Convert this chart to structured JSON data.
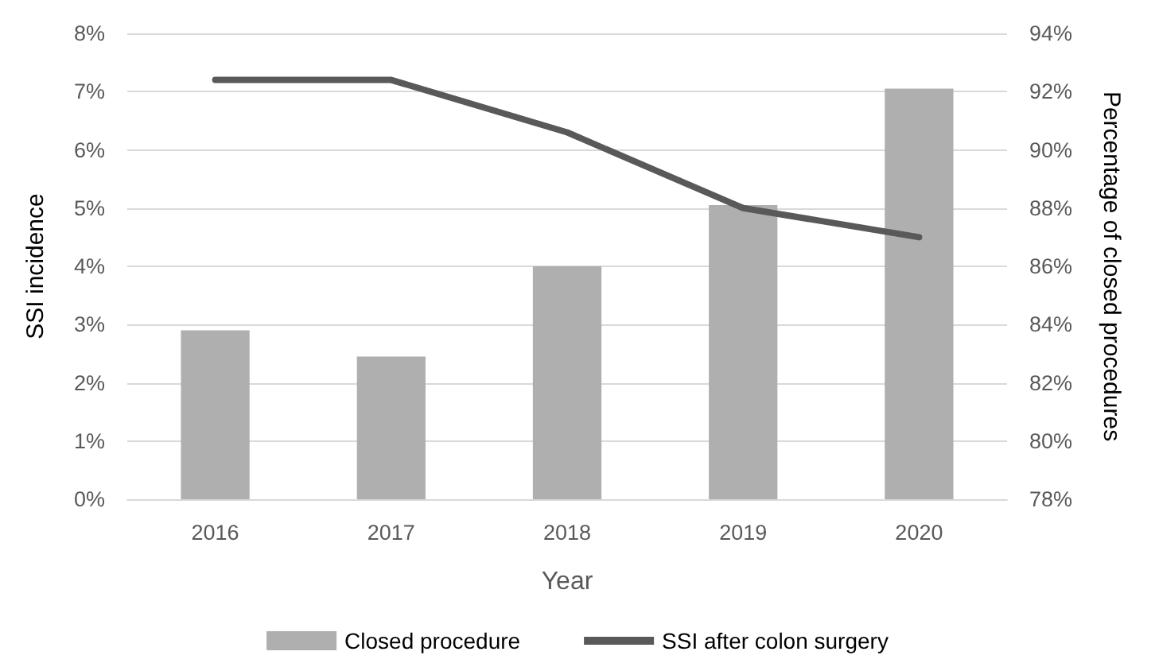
{
  "chart_data": {
    "type": "bar",
    "xlabel": "Year",
    "ylabel": "SSI incidence",
    "y2label": "Percentage of closed procedures",
    "categories": [
      "2016",
      "2017",
      "2018",
      "2019",
      "2020"
    ],
    "series": [
      {
        "name": "Closed procedure",
        "type": "bar",
        "axis": "y2",
        "color": "#afafaf",
        "values": [
          83.8,
          82.9,
          86.0,
          88.1,
          92.1
        ]
      },
      {
        "name": "SSI after colon surgery",
        "type": "line",
        "axis": "y",
        "color": "#595959",
        "values": [
          7.2,
          7.2,
          6.3,
          5.0,
          4.5
        ],
        "marker": "none",
        "line_style": "solid"
      }
    ],
    "ylim": [
      0,
      8
    ],
    "yticks": [
      {
        "value": 0,
        "label": "0%"
      },
      {
        "value": 1,
        "label": "1%"
      },
      {
        "value": 2,
        "label": "2%"
      },
      {
        "value": 3,
        "label": "3%"
      },
      {
        "value": 4,
        "label": "4%"
      },
      {
        "value": 5,
        "label": "5%"
      },
      {
        "value": 6,
        "label": "6%"
      },
      {
        "value": 7,
        "label": "7%"
      },
      {
        "value": 8,
        "label": "8%"
      }
    ],
    "y2lim": [
      78,
      94
    ],
    "y2ticks": [
      {
        "value": 78,
        "label": "78%"
      },
      {
        "value": 80,
        "label": "80%"
      },
      {
        "value": 82,
        "label": "82%"
      },
      {
        "value": 84,
        "label": "84%"
      },
      {
        "value": 86,
        "label": "86%"
      },
      {
        "value": 88,
        "label": "88%"
      },
      {
        "value": 90,
        "label": "90%"
      },
      {
        "value": 92,
        "label": "92%"
      },
      {
        "value": 94,
        "label": "94%"
      }
    ],
    "grid": "y",
    "legend": "bottom"
  }
}
